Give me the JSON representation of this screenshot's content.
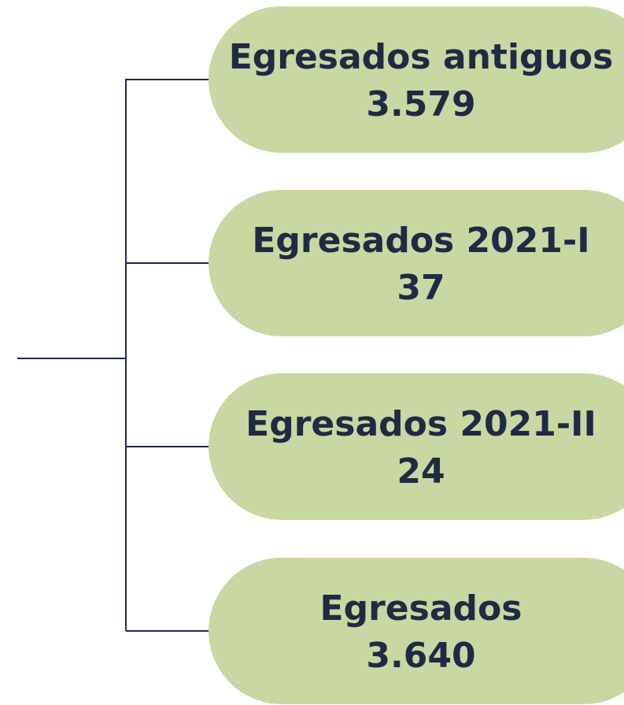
{
  "nodes": [
    {
      "label": "Egresados antiguos",
      "value": "3.579"
    },
    {
      "label": "Egresados 2021-I",
      "value": "37"
    },
    {
      "label": "Egresados 2021-II",
      "value": "24"
    },
    {
      "label": "Egresados",
      "value": "3.640"
    }
  ]
}
